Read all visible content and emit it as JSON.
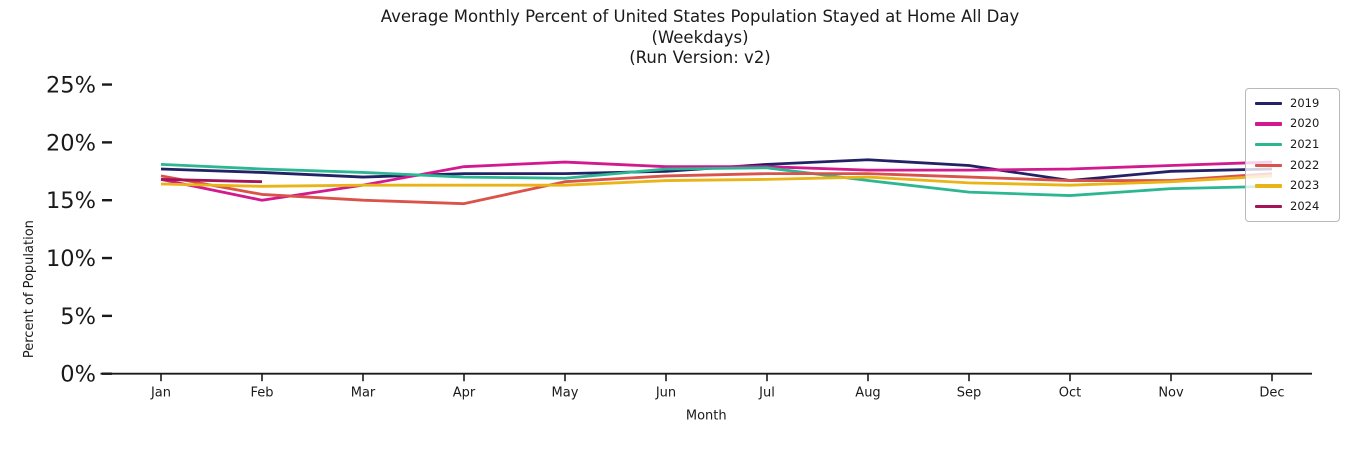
{
  "title": {
    "line1": "Average Monthly Percent of United States Population Stayed at Home All Day",
    "line2": "(Weekdays)",
    "line3": "(Run Version: v2)"
  },
  "chart_data": {
    "type": "line",
    "categories": [
      "Jan",
      "Feb",
      "Mar",
      "Apr",
      "May",
      "Jun",
      "Jul",
      "Aug",
      "Sep",
      "Oct",
      "Nov",
      "Dec"
    ],
    "series": [
      {
        "name": "2019",
        "color": "#232266",
        "values": [
          17.7,
          17.4,
          17.0,
          17.3,
          17.3,
          17.5,
          18.1,
          18.5,
          18.0,
          16.7,
          17.5,
          17.7
        ]
      },
      {
        "name": "2020",
        "color": "#d2198d",
        "values": [
          16.8,
          15.0,
          16.3,
          17.9,
          18.3,
          17.9,
          17.9,
          17.6,
          17.6,
          17.7,
          18.0,
          18.3
        ]
      },
      {
        "name": "2021",
        "color": "#2cb792",
        "values": [
          18.1,
          17.7,
          17.4,
          17.0,
          16.9,
          17.7,
          17.8,
          16.7,
          15.7,
          15.4,
          16.0,
          16.2
        ]
      },
      {
        "name": "2022",
        "color": "#d9534b",
        "values": [
          17.1,
          15.5,
          15.0,
          14.7,
          16.6,
          17.1,
          17.3,
          17.3,
          17.0,
          16.7,
          16.7,
          17.3
        ]
      },
      {
        "name": "2023",
        "color": "#e9b418",
        "values": [
          16.4,
          16.2,
          16.3,
          16.3,
          16.3,
          16.7,
          16.8,
          17.0,
          16.5,
          16.3,
          16.6,
          17.1
        ]
      },
      {
        "name": "2024",
        "color": "#a31458",
        "values": [
          16.8,
          16.6
        ]
      }
    ],
    "xlabel": "Month",
    "ylabel": "Percent of Population",
    "ytick_labels": [
      "0%",
      "5%",
      "10%",
      "15%",
      "20%",
      "25%"
    ],
    "ytick_values": [
      0,
      5,
      10,
      15,
      20,
      25
    ],
    "ylim": [
      0,
      25.5
    ],
    "grid": false,
    "legend_position": "upper right"
  },
  "style_colors": {
    "axis": "#1a1a1a",
    "text": "#1a1a1a",
    "legend_border": "#b9b9b9"
  }
}
